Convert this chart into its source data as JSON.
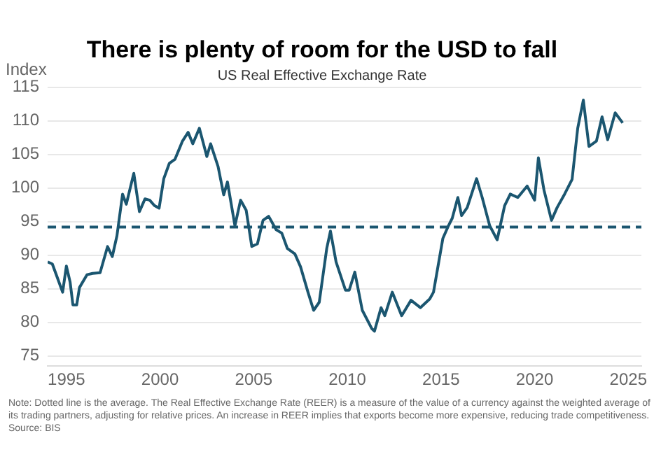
{
  "chart_data": {
    "type": "line",
    "title": "There is plenty of room for the USD to fall",
    "subtitle": "US Real Effective Exchange Rate",
    "ylabel": "Index",
    "x": [
      1994.0,
      1994.25,
      1994.5,
      1994.8,
      1995.0,
      1995.2,
      1995.35,
      1995.55,
      1995.7,
      1996.1,
      1996.4,
      1996.8,
      1997.2,
      1997.45,
      1997.7,
      1998.0,
      1998.2,
      1998.6,
      1998.9,
      1999.2,
      1999.45,
      1999.7,
      1999.95,
      2000.2,
      2000.5,
      2000.8,
      2001.2,
      2001.5,
      2001.75,
      2002.1,
      2002.5,
      2002.7,
      2003.1,
      2003.4,
      2003.6,
      2004.0,
      2004.3,
      2004.6,
      2004.9,
      2005.2,
      2005.5,
      2005.8,
      2006.2,
      2006.5,
      2006.8,
      2007.2,
      2007.5,
      2007.9,
      2008.2,
      2008.5,
      2008.9,
      2009.1,
      2009.4,
      2009.9,
      2010.1,
      2010.4,
      2010.8,
      2011.3,
      2011.45,
      2011.8,
      2012.0,
      2012.4,
      2012.9,
      2013.4,
      2013.9,
      2014.4,
      2014.6,
      2015.1,
      2015.4,
      2015.6,
      2015.9,
      2016.1,
      2016.4,
      2016.9,
      2017.2,
      2017.6,
      2018.0,
      2018.4,
      2018.7,
      2019.1,
      2019.6,
      2020.0,
      2020.2,
      2020.5,
      2020.9,
      2021.2,
      2021.6,
      2022.0,
      2022.3,
      2022.6,
      2022.9,
      2023.3,
      2023.6,
      2023.9,
      2024.3,
      2024.7
    ],
    "series": [
      {
        "color": "#1b5670",
        "values": [
          89.0,
          88.7,
          86.8,
          84.5,
          88.4,
          86.0,
          82.6,
          82.6,
          85.2,
          87.1,
          87.3,
          87.4,
          91.3,
          89.8,
          92.9,
          99.1,
          97.6,
          102.2,
          96.5,
          98.4,
          98.2,
          97.4,
          97.0,
          101.4,
          103.7,
          104.3,
          107.0,
          108.3,
          106.6,
          108.9,
          104.7,
          106.6,
          103.2,
          99.0,
          100.9,
          94.4,
          98.2,
          96.7,
          91.3,
          91.7,
          95.2,
          95.8,
          93.8,
          93.3,
          91.0,
          90.2,
          88.3,
          84.5,
          81.8,
          83.0,
          91.0,
          93.6,
          89.0,
          84.8,
          84.8,
          87.5,
          81.8,
          79.1,
          78.7,
          82.2,
          81.0,
          84.5,
          81.0,
          83.3,
          82.2,
          83.5,
          84.5,
          92.5,
          94.4,
          95.5,
          98.6,
          95.9,
          97.1,
          101.4,
          98.6,
          94.4,
          92.3,
          97.4,
          99.1,
          98.6,
          100.3,
          98.2,
          104.5,
          99.7,
          95.2,
          97.1,
          99.1,
          101.3,
          108.9,
          113.1,
          106.2,
          107.0,
          110.6,
          107.2,
          111.2,
          109.7
        ]
      }
    ],
    "xlim": [
      1994,
      2025.7
    ],
    "xticks": [
      1995,
      2000,
      2005,
      2010,
      2015,
      2020,
      2025
    ],
    "ylim": [
      73.5,
      115
    ],
    "yticks": [
      75,
      80,
      85,
      90,
      95,
      100,
      105,
      110,
      115
    ],
    "ref_lines": [
      {
        "axis": "y",
        "value": 94.2,
        "color": "#1b5670",
        "line_style": "dashed"
      }
    ],
    "grid": "y",
    "legend": false,
    "marker": "none",
    "line_style": "solid",
    "annotations": [
      "Note: Dotted line is the average. The Real Effective Exchange Rate (REER) is a measure of the value of a currency against the weighted average of its trading partners, adjusting for relative prices.  An increase in REER implies that exports become more expensive, reducing trade competitiveness.  Source: BIS"
    ]
  }
}
